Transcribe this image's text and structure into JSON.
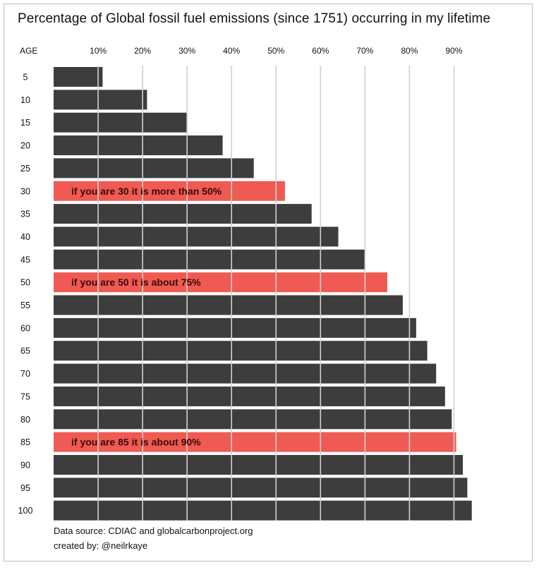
{
  "title": "Percentage of Global fossil fuel emissions (since 1751) occurring in my lifetime",
  "footer": {
    "source": "Data source: CDIAC and globalcarbonproject.org",
    "credit": "created by: @neilrkaye"
  },
  "colors": {
    "bar": "#3d3d3d",
    "highlight": "#ef5a52",
    "gridline": "#d0d0d0",
    "annotation_text": "#3a0a0a"
  },
  "chart_data": {
    "type": "bar",
    "orientation": "horizontal",
    "title": "Percentage of Global fossil fuel emissions (since 1751) occurring in my lifetime",
    "ylabel": "AGE",
    "xlabel": "",
    "x_ticks": [
      "10%",
      "20%",
      "30%",
      "40%",
      "50%",
      "60%",
      "70%",
      "80%",
      "90%"
    ],
    "xlim": [
      0,
      100
    ],
    "x_axis_position": "top",
    "grid": true,
    "categories": [
      "5",
      "10",
      "15",
      "20",
      "25",
      "30",
      "35",
      "40",
      "45",
      "50",
      "55",
      "60",
      "65",
      "70",
      "75",
      "80",
      "85",
      "90",
      "95",
      "100"
    ],
    "values": [
      11,
      21,
      30,
      38,
      45,
      52,
      58,
      64,
      70,
      75,
      78.5,
      81.5,
      84,
      86,
      88,
      89.5,
      90.5,
      92,
      93,
      94
    ],
    "highlighted": [
      "30",
      "50",
      "85"
    ],
    "annotations": [
      {
        "category": "30",
        "text": "if you are 30 it is more than 50%"
      },
      {
        "category": "50",
        "text": "if you are 50 it is about 75%"
      },
      {
        "category": "85",
        "text": "if you are 85 it is about 90%"
      }
    ]
  }
}
